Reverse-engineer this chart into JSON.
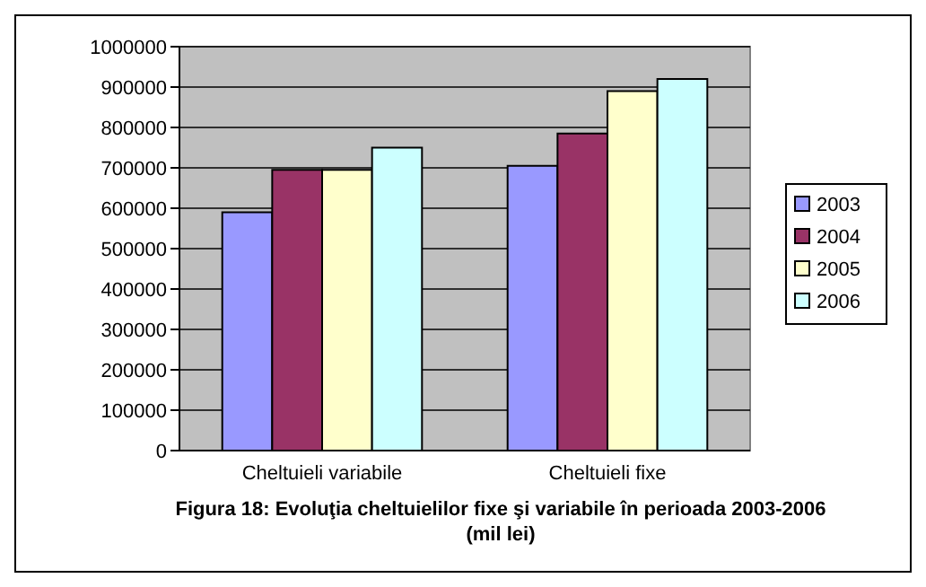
{
  "chart_data": {
    "type": "bar",
    "title": "Figura 18: Evoluţia cheltuielilor fixe şi variabile în perioada 2003-2006 (mil lei)",
    "categories": [
      "Cheltuieli variabile",
      "Cheltuieli fixe"
    ],
    "series": [
      {
        "name": "2003",
        "color": "#9999ff",
        "values": [
          590000,
          705000
        ]
      },
      {
        "name": "2004",
        "color": "#993366",
        "values": [
          695000,
          785000
        ]
      },
      {
        "name": "2005",
        "color": "#ffffcc",
        "values": [
          695000,
          890000
        ]
      },
      {
        "name": "2006",
        "color": "#ccffff",
        "values": [
          750000,
          920000
        ]
      }
    ],
    "ylim": [
      0,
      1000000
    ],
    "yticks": [
      0,
      100000,
      200000,
      300000,
      400000,
      500000,
      600000,
      700000,
      800000,
      900000,
      1000000
    ],
    "grid": "y",
    "legend": "right"
  }
}
